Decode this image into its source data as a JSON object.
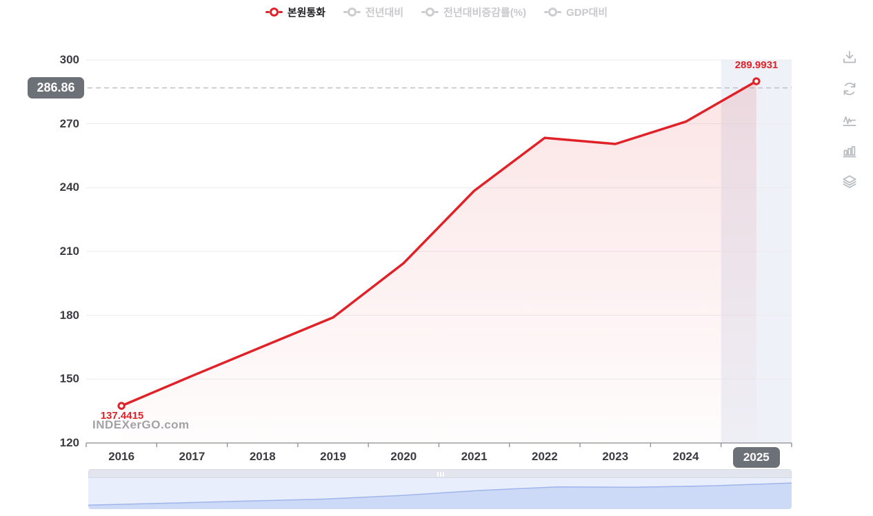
{
  "legend": {
    "items": [
      {
        "label": "본원통화",
        "active": true
      },
      {
        "label": "전년대비",
        "active": false
      },
      {
        "label": "전년대비증감률(%)",
        "active": false
      },
      {
        "label": "GDP대비",
        "active": false
      }
    ]
  },
  "chart_data": {
    "type": "area",
    "series": [
      {
        "name": "본원통화",
        "values": [
          137.4415,
          151.5,
          165.3,
          179.0,
          204.5,
          238.5,
          263.4,
          260.5,
          271.0,
          289.9931
        ]
      }
    ],
    "categories": [
      "2016",
      "2017",
      "2018",
      "2019",
      "2020",
      "2021",
      "2022",
      "2023",
      "2024",
      "2025"
    ],
    "ylim": [
      120,
      300
    ],
    "yticks": [
      120,
      150,
      180,
      210,
      240,
      270,
      300
    ],
    "grid": "horizontal",
    "legend_position": "top-center",
    "first_point_label": "137.4415",
    "last_point_label": "289.9931",
    "reference_line": {
      "value": 286.86,
      "label": "286.86"
    },
    "highlighted_category": "2025",
    "navigator": {
      "shown": true
    }
  },
  "watermark": "INDEXerGO.com",
  "toolbar": {
    "icons": [
      "download-icon",
      "refresh-icon",
      "line-chart-icon",
      "bar-chart-icon",
      "layers-icon"
    ]
  },
  "colors": {
    "series_red": "#e02127",
    "area_fill_top": "rgba(224,33,39,0.12)",
    "area_fill_bottom": "rgba(224,33,39,0.01)",
    "badge_gray": "#6c7077",
    "axis_text": "#3b3b42",
    "axis_line": "#8b8b90",
    "gridline": "#ebebee",
    "dashed_ref": "#c2c3c9",
    "inactive_legend": "#cdcdd1",
    "highlight_band": "#eef1f8",
    "navigator_bg": "#e9eefc",
    "navigator_fill": "#ccdaf7",
    "navigator_line": "#9fb4ea",
    "scrollbar_track": "#e2e5ee"
  }
}
